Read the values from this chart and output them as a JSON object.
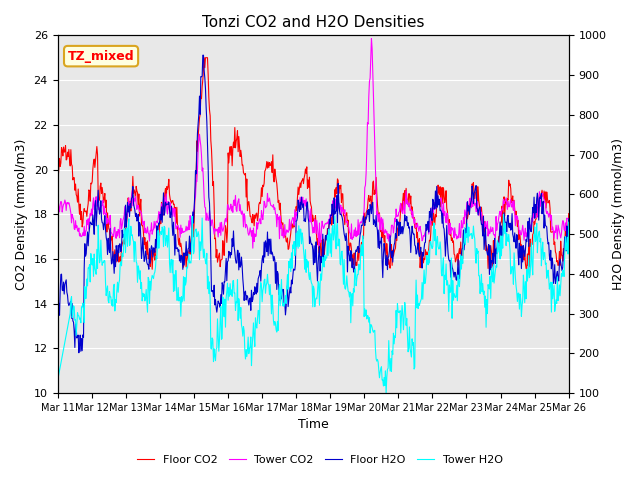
{
  "title": "Tonzi CO2 and H2O Densities",
  "xlabel": "Time",
  "ylabel_left": "CO2 Density (mmol/m3)",
  "ylabel_right": "H2O Density (mmol/m3)",
  "annotation": "TZ_mixed",
  "ylim_left": [
    10,
    26
  ],
  "ylim_right": [
    100,
    1000
  ],
  "yticks_left": [
    10,
    12,
    14,
    16,
    18,
    20,
    22,
    24,
    26
  ],
  "yticks_right": [
    100,
    200,
    300,
    400,
    500,
    600,
    700,
    800,
    900,
    1000
  ],
  "xtick_labels": [
    "Mar 11",
    "Mar 12",
    "Mar 13",
    "Mar 14",
    "Mar 15",
    "Mar 16",
    "Mar 17",
    "Mar 18",
    "Mar 19",
    "Mar 20",
    "Mar 21",
    "Mar 22",
    "Mar 23",
    "Mar 24",
    "Mar 25",
    "Mar 26"
  ],
  "colors": {
    "floor_co2": "#ff0000",
    "tower_co2": "#ff00ff",
    "floor_h2o": "#0000cd",
    "tower_h2o": "#00ffff"
  },
  "legend_labels": [
    "Floor CO2",
    "Tower CO2",
    "Floor H2O",
    "Tower H2O"
  ],
  "background_color": "#e8e8e8",
  "seed": 42
}
